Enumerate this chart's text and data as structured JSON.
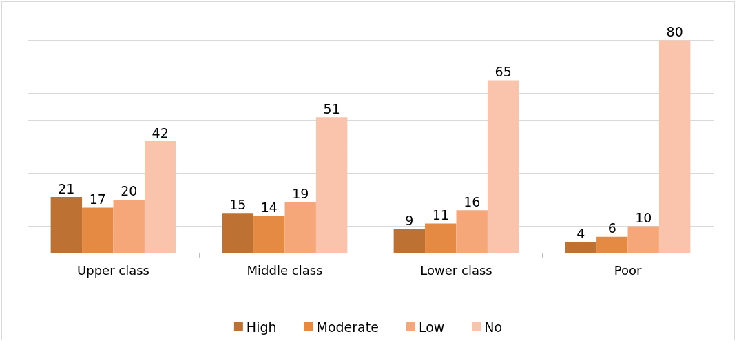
{
  "chart_data": {
    "type": "bar",
    "categories": [
      "Upper class",
      "Middle class",
      "Lower class",
      "Poor"
    ],
    "series": [
      {
        "name": "High",
        "color": "#bd7133",
        "values": [
          21,
          15,
          9,
          4
        ]
      },
      {
        "name": "Moderate",
        "color": "#e58a43",
        "values": [
          17,
          14,
          11,
          6
        ]
      },
      {
        "name": "Low",
        "color": "#f6a77a",
        "values": [
          20,
          19,
          16,
          10
        ]
      },
      {
        "name": "No",
        "color": "#f9c4ab",
        "values": [
          42,
          51,
          65,
          80
        ]
      }
    ],
    "ylim": [
      0,
      90
    ],
    "yticks": [
      {
        "value": 0,
        "label": null
      },
      {
        "value": 10,
        "label": null
      },
      {
        "value": 20,
        "label": null
      },
      {
        "value": 30,
        "label": null
      },
      {
        "value": 40,
        "label": null
      },
      {
        "value": 50,
        "label": null
      },
      {
        "value": 60,
        "label": null
      },
      {
        "value": 70,
        "label": null
      },
      {
        "value": 80,
        "label": null
      },
      {
        "value": 90,
        "label": null
      }
    ],
    "tick_labels": "x",
    "grid": "y",
    "legend": "bottom",
    "data_labels": true
  }
}
